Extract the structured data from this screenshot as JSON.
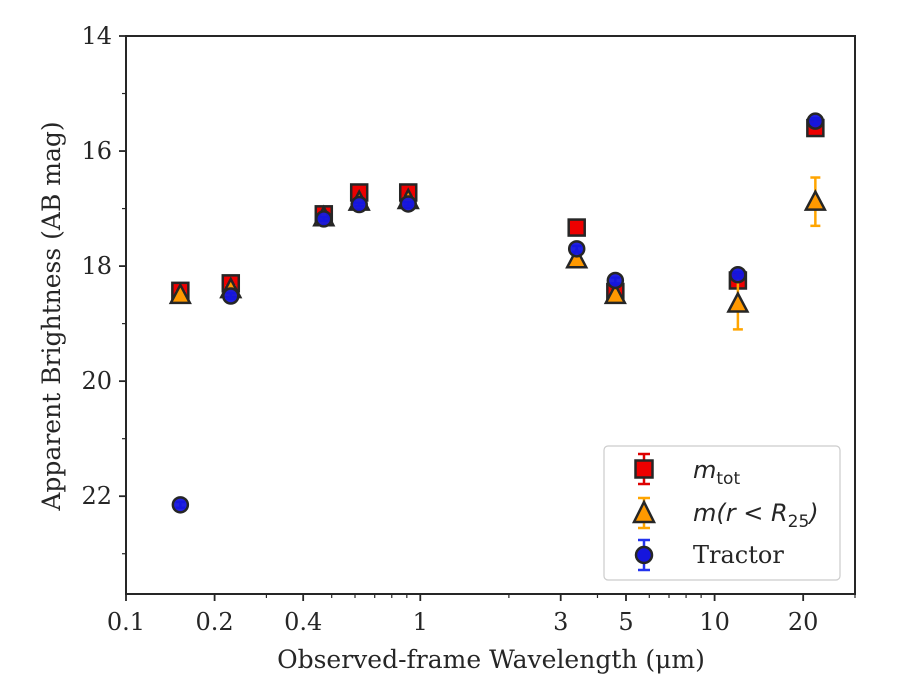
{
  "chart_data": {
    "type": "scatter",
    "xscale": "log",
    "yscale": "linear",
    "y_inverted": true,
    "xlim": [
      0.1,
      30
    ],
    "ylim": [
      23.7,
      14
    ],
    "xlabel": "Observed-frame Wavelength (μm)",
    "ylabel": "Apparent Brightness (AB mag)",
    "xticks": [
      {
        "value": 0.1,
        "label": "0.1"
      },
      {
        "value": 0.2,
        "label": "0.2"
      },
      {
        "value": 0.4,
        "label": "0.4"
      },
      {
        "value": 1,
        "label": "1"
      },
      {
        "value": 3,
        "label": "3"
      },
      {
        "value": 5,
        "label": "5"
      },
      {
        "value": 10,
        "label": "10"
      },
      {
        "value": 20,
        "label": "20"
      }
    ],
    "minor_xticks": [
      0.3,
      0.5,
      0.6,
      0.7,
      0.8,
      0.9,
      2,
      4,
      6,
      7,
      8,
      9,
      30
    ],
    "yticks": [
      {
        "value": 14,
        "label": "14"
      },
      {
        "value": 16,
        "label": "16"
      },
      {
        "value": 18,
        "label": "18"
      },
      {
        "value": 20,
        "label": "20"
      },
      {
        "value": 22,
        "label": "22"
      }
    ],
    "minor_yticks": [
      15,
      17,
      19,
      21,
      23
    ],
    "legend": {
      "placement": "lower right"
    },
    "series": [
      {
        "name": "m_tot",
        "marker": "square",
        "fill": "#ee0000",
        "edge": "#262626",
        "errcolor": "#dd0000",
        "points": [
          {
            "x": 0.153,
            "y": 18.43,
            "err": 0.1
          },
          {
            "x": 0.227,
            "y": 18.3,
            "err": 0.1
          },
          {
            "x": 0.47,
            "y": 17.1,
            "err": 0.07
          },
          {
            "x": 0.62,
            "y": 16.72,
            "err": 0.07
          },
          {
            "x": 0.91,
            "y": 16.72,
            "err": 0.07
          },
          {
            "x": 3.4,
            "y": 17.33,
            "err": 0.05
          },
          {
            "x": 4.6,
            "y": 18.45,
            "err": 0.07
          },
          {
            "x": 12.0,
            "y": 18.25,
            "err": 0.07
          },
          {
            "x": 22.0,
            "y": 15.6,
            "err": 0.1
          }
        ]
      },
      {
        "name": "m(r < R25)",
        "marker": "triangle",
        "fill": "#ff9900",
        "edge": "#262626",
        "errcolor": "#ffa500",
        "points": [
          {
            "x": 0.153,
            "y": 18.5,
            "err": 0.05
          },
          {
            "x": 0.227,
            "y": 18.4,
            "err": 0.05
          },
          {
            "x": 0.47,
            "y": 17.15,
            "err": 0.05
          },
          {
            "x": 0.62,
            "y": 16.88,
            "err": 0.05
          },
          {
            "x": 0.91,
            "y": 16.85,
            "err": 0.05
          },
          {
            "x": 3.4,
            "y": 17.88,
            "err": 0.05
          },
          {
            "x": 4.6,
            "y": 18.5,
            "err": 0.05
          },
          {
            "x": 12.0,
            "y": 18.65,
            "err": 0.45
          },
          {
            "x": 22.0,
            "y": 16.88,
            "err": 0.42
          }
        ]
      },
      {
        "name": "Tractor",
        "marker": "circle",
        "fill": "#1515dd",
        "edge": "#262626",
        "errcolor": "#2233ee",
        "points": [
          {
            "x": 0.153,
            "y": 22.15,
            "err": 0.05
          },
          {
            "x": 0.227,
            "y": 18.52,
            "err": 0.05
          },
          {
            "x": 0.47,
            "y": 17.18,
            "err": 0.03
          },
          {
            "x": 0.62,
            "y": 16.93,
            "err": 0.03
          },
          {
            "x": 0.91,
            "y": 16.92,
            "err": 0.03
          },
          {
            "x": 3.4,
            "y": 17.7,
            "err": 0.05
          },
          {
            "x": 4.6,
            "y": 18.25,
            "err": 0.05
          },
          {
            "x": 12.0,
            "y": 18.15,
            "err": 0.05
          },
          {
            "x": 22.0,
            "y": 15.48,
            "err": 0.05
          }
        ]
      }
    ]
  },
  "legend": {
    "items": [
      {
        "label": "m",
        "sub": "tot"
      },
      {
        "label": "m(r < R",
        "sub": "25",
        "tail": ")"
      },
      {
        "label": "Tractor"
      }
    ]
  }
}
